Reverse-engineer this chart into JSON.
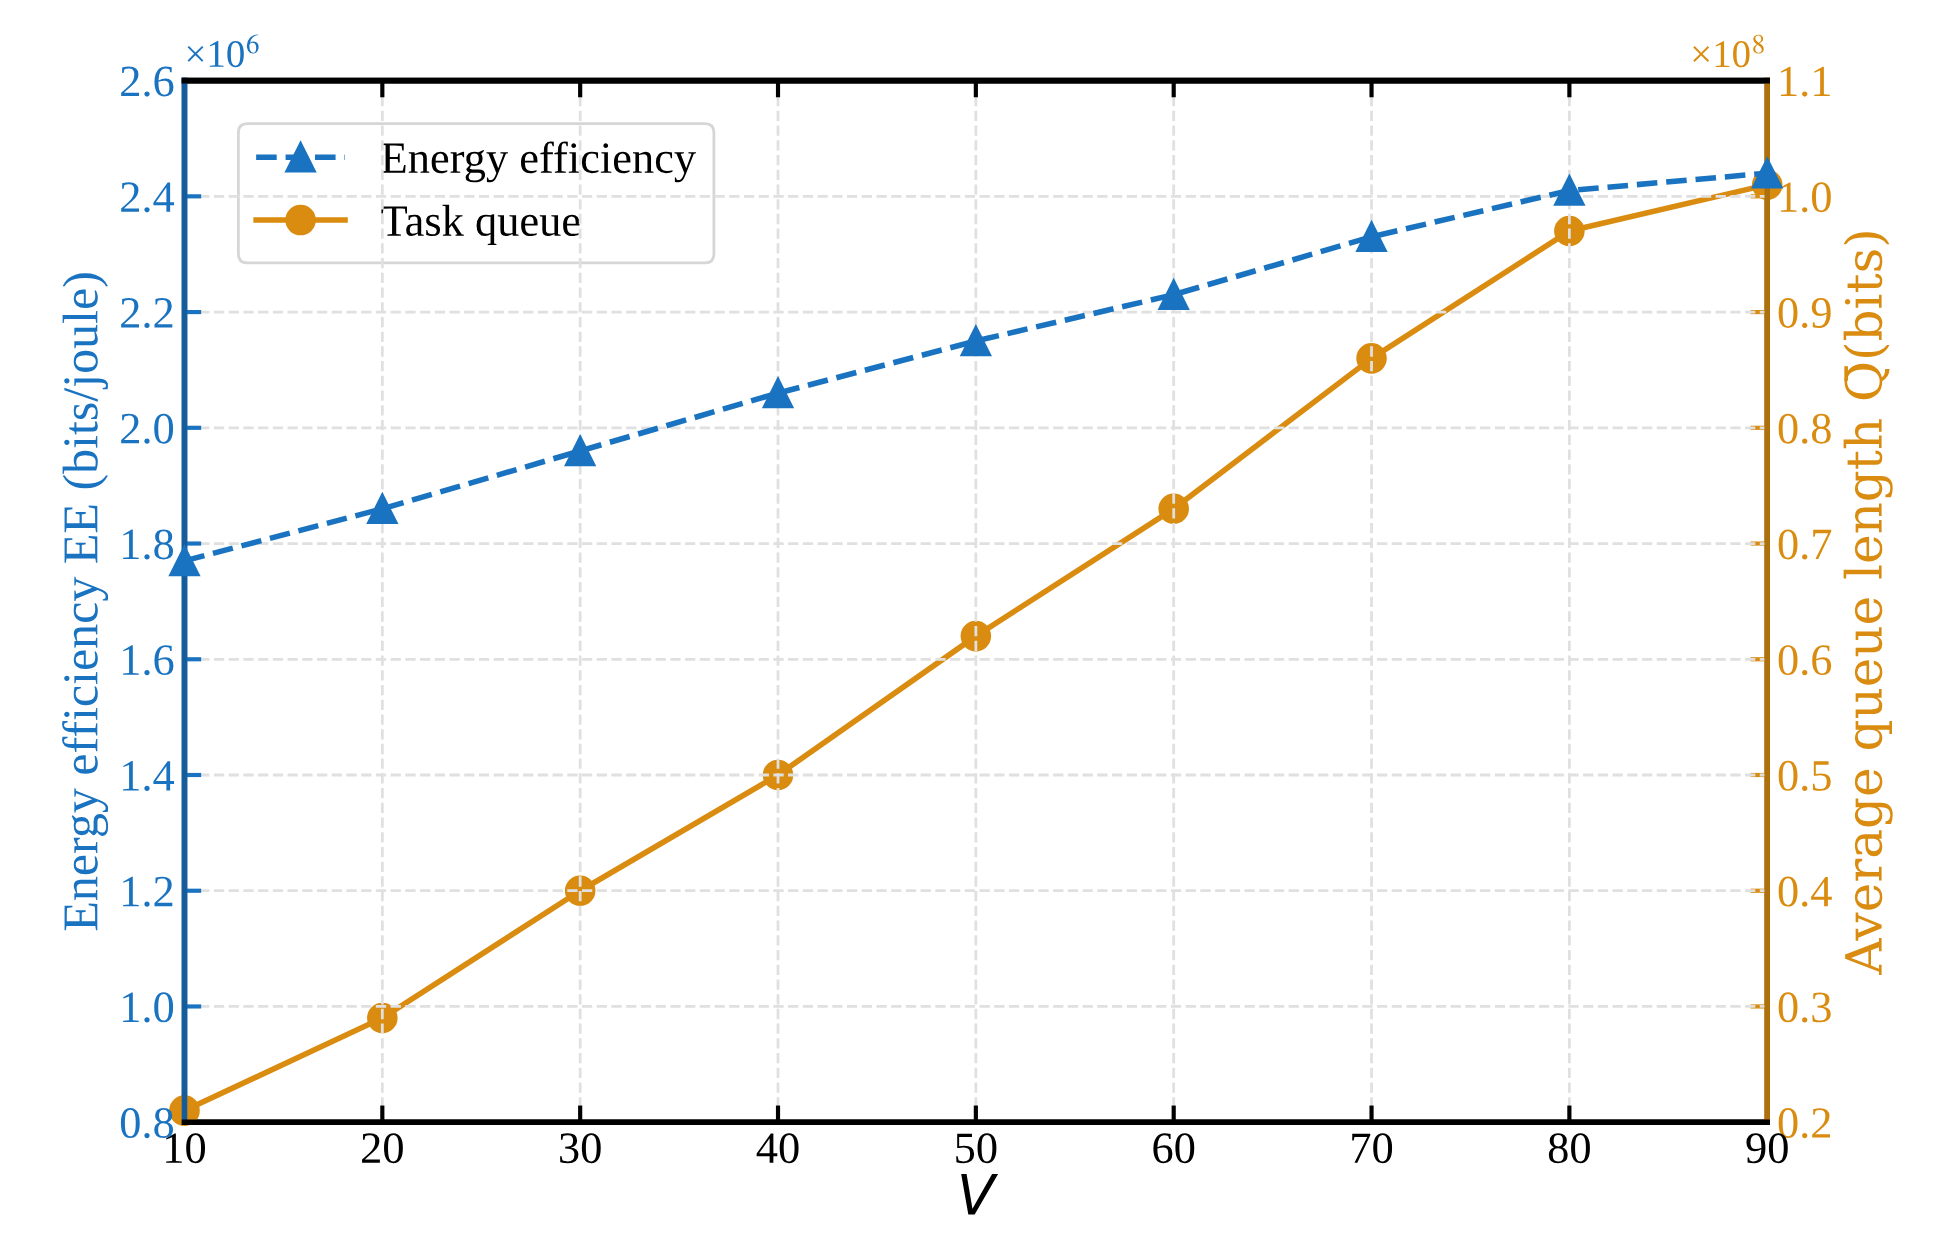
{
  "chart_data": {
    "type": "line",
    "xlabel": "V",
    "ylabel": "Energy efficiency EE (bits/joule)",
    "y2label": "Average queue length Q̄(bits)",
    "x": [
      10,
      20,
      30,
      40,
      50,
      60,
      70,
      80,
      90
    ],
    "series": [
      {
        "name": "Energy efficiency",
        "color": "#1a73c0",
        "marker": "triangle",
        "line_style": "dashed",
        "values": [
          1.77,
          1.86,
          1.96,
          2.06,
          2.15,
          2.23,
          2.33,
          2.41,
          2.44
        ]
      },
      {
        "name": "Task queue",
        "color": "#d98c0f",
        "marker": "circle",
        "line_style": "solid",
        "axis": "y2",
        "values": [
          0.21,
          0.29,
          0.4,
          0.5,
          0.62,
          0.73,
          0.86,
          0.97,
          1.01
        ]
      }
    ],
    "xlim": [
      10,
      90
    ],
    "xticks": [
      10,
      20,
      30,
      40,
      50,
      60,
      70,
      80,
      90
    ],
    "ylim": [
      0.8,
      2.6
    ],
    "yticks": [
      {
        "value": 0.8,
        "label": "0.8"
      },
      {
        "value": 1.0,
        "label": "1.0"
      },
      {
        "value": 1.2,
        "label": "1.2"
      },
      {
        "value": 1.4,
        "label": "1.4"
      },
      {
        "value": 1.6,
        "label": "1.6"
      },
      {
        "value": 1.8,
        "label": "1.8"
      },
      {
        "value": 2.0,
        "label": "2.0"
      },
      {
        "value": 2.2,
        "label": "2.2"
      },
      {
        "value": 2.4,
        "label": "2.4"
      },
      {
        "value": 2.6,
        "label": "2.6"
      }
    ],
    "y2lim": [
      0.2,
      1.1
    ],
    "y2ticks": [
      0.2,
      0.3,
      0.4,
      0.5,
      0.6,
      0.7,
      0.8,
      0.9,
      {
        "value": 1.0,
        "label": "1.0"
      },
      1.1
    ],
    "annotations": [
      "×10$^{6}$",
      "×10$^{8}$"
    ],
    "grid": true,
    "legend": "top left"
  }
}
